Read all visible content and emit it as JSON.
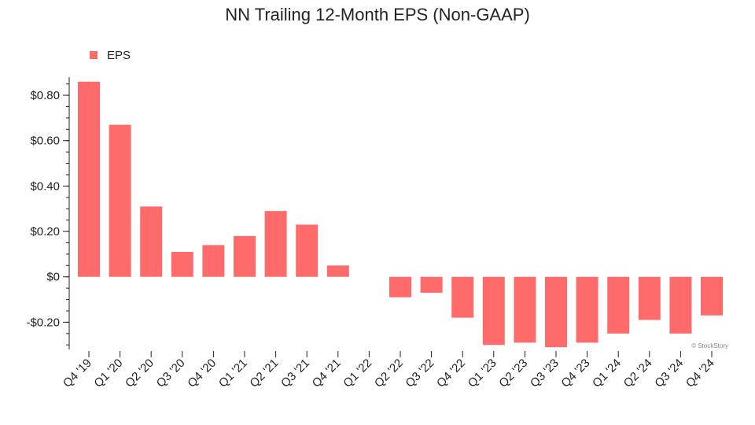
{
  "chart_data": {
    "type": "bar",
    "title": "NN Trailing 12-Month EPS (Non-GAAP)",
    "xlabel": "",
    "ylabel": "",
    "categories": [
      "Q4 '19",
      "Q1 '20",
      "Q2 '20",
      "Q3 '20",
      "Q4 '20",
      "Q1 '21",
      "Q2 '21",
      "Q3 '21",
      "Q4 '21",
      "Q1 '22",
      "Q2 '22",
      "Q3 '22",
      "Q4 '22",
      "Q1 '23",
      "Q2 '23",
      "Q3 '23",
      "Q4 '23",
      "Q1 '24",
      "Q2 '24",
      "Q3 '24",
      "Q4 '24"
    ],
    "series": [
      {
        "name": "EPS",
        "color": "#ff6b6b",
        "values": [
          0.86,
          0.67,
          0.31,
          0.11,
          0.14,
          0.18,
          0.29,
          0.23,
          0.05,
          0.0,
          -0.09,
          -0.07,
          -0.18,
          -0.3,
          -0.29,
          -0.31,
          -0.29,
          -0.25,
          -0.19,
          -0.25,
          -0.17
        ]
      }
    ],
    "ylim": [
      -0.32,
      0.88
    ],
    "yticks": [
      -0.2,
      0,
      0.2,
      0.4,
      0.6,
      0.8
    ],
    "ytick_labels": [
      "-$0.20",
      "$0",
      "$0.20",
      "$0.40",
      "$0.60",
      "$0.80"
    ],
    "minor_tick_step": 0.05,
    "legend_position": "top-left",
    "grid": false
  },
  "watermark": "© StockStory"
}
